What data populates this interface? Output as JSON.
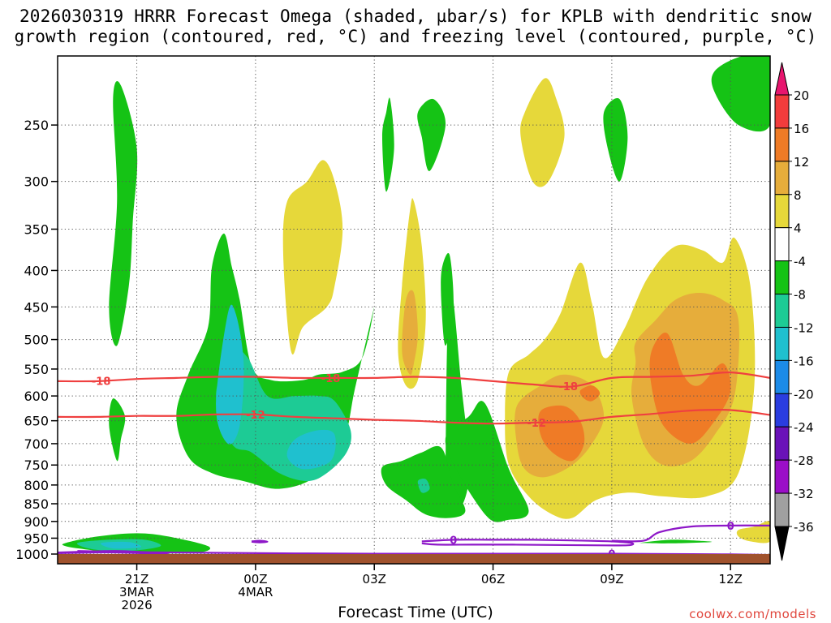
{
  "chart_data": {
    "type": "contour",
    "title_line1": "2026030319 HRRR Forecast Omega (shaded, µbar/s) for KPLB with dendritic snow",
    "title_line2": "growth region (contoured, red, °C) and freezing level (contoured, purple, °C)",
    "xlabel": "Forecast Time (UTC)",
    "ylabel": "",
    "x_ticks": [
      {
        "t": 21,
        "lines": [
          "21Z",
          "3MAR",
          "2026"
        ]
      },
      {
        "t": 24,
        "lines": [
          "00Z",
          "4MAR"
        ]
      },
      {
        "t": 27,
        "lines": [
          "03Z"
        ]
      },
      {
        "t": 30,
        "lines": [
          "06Z"
        ]
      },
      {
        "t": 33,
        "lines": [
          "09Z"
        ]
      },
      {
        "t": 36,
        "lines": [
          "12Z"
        ]
      }
    ],
    "xlim": [
      19,
      37
    ],
    "ylim_hpa": [
      1000,
      200
    ],
    "y_ticks": [
      250,
      300,
      350,
      400,
      450,
      500,
      550,
      600,
      650,
      700,
      750,
      800,
      850,
      900,
      950,
      1000
    ],
    "colorbar": {
      "labels": [
        "20",
        "16",
        "12",
        "8",
        "4",
        "-4",
        "-8",
        "-12",
        "-16",
        "-20",
        "-24",
        "-28",
        "-32",
        "-36"
      ],
      "colors": [
        "#e8156e",
        "#f23c3c",
        "#ef7b26",
        "#e6ad3b",
        "#e6d83a",
        "#ffffff",
        "#15c315",
        "#1dcb95",
        "#1fc0cf",
        "#1c8be8",
        "#2a3de0",
        "#6a12b8",
        "#9b0ec7",
        "#a0a0a0",
        "#000000"
      ]
    },
    "omega_regions": [
      {
        "level": "-4",
        "color": "#15c315",
        "t": [
          20.4,
          20.6,
          21.0,
          20.9,
          20.8,
          20.5,
          20.3,
          20.5
        ],
        "p": [
          230,
          220,
          270,
          340,
          420,
          510,
          450,
          320
        ]
      },
      {
        "level": "-4",
        "color": "#15c315",
        "t": [
          20.4,
          20.7,
          20.6,
          20.5,
          20.3
        ],
        "p": [
          605,
          640,
          690,
          740,
          660
        ]
      },
      {
        "level": "-4",
        "color": "#15c315",
        "t": [
          22.9,
          23.2,
          23.4,
          23.6,
          23.9,
          24.4,
          25.2,
          25.6,
          26.2,
          26.7,
          27.0,
          26.8,
          26.5,
          26.2,
          25.5,
          24.6,
          23.7,
          22.9,
          22.3,
          22.0,
          22.3,
          22.8
        ],
        "p": [
          395,
          355,
          395,
          440,
          545,
          570,
          570,
          560,
          555,
          530,
          450,
          500,
          590,
          700,
          780,
          810,
          790,
          770,
          730,
          640,
          560,
          480
        ]
      },
      {
        "level": "-4",
        "color": "#15c315",
        "t": [
          27.3,
          27.4,
          27.5,
          27.3,
          27.2
        ],
        "p": [
          240,
          230,
          270,
          310,
          260
        ]
      },
      {
        "level": "-4",
        "color": "#15c315",
        "t": [
          28.1,
          28.5,
          28.8,
          28.4,
          28.2
        ],
        "p": [
          240,
          230,
          250,
          290,
          260
        ]
      },
      {
        "level": "-4",
        "color": "#15c315",
        "t": [
          28.9,
          29.2,
          29.4,
          29.2,
          28.9,
          28.8
        ],
        "p": [
          420,
          580,
          760,
          860,
          870,
          800
        ]
      },
      {
        "level": "-4",
        "color": "#15c315",
        "t": [
          27.2,
          27.7,
          28.2,
          28.7,
          29.0,
          29.3,
          28.9,
          28.3,
          27.8,
          27.3
        ],
        "p": [
          755,
          740,
          720,
          710,
          800,
          870,
          890,
          880,
          840,
          800
        ]
      },
      {
        "level": "-4",
        "color": "#15c315",
        "t": [
          28.8,
          29.4,
          29.8,
          30.4,
          30.9,
          30.4,
          29.8
        ],
        "p": [
          700,
          640,
          615,
          760,
          870,
          895,
          880
        ]
      },
      {
        "level": "-4",
        "color": "#15c315",
        "t": [
          28.7,
          28.9,
          29.0,
          28.8,
          28.7
        ],
        "p": [
          400,
          380,
          450,
          510,
          450
        ]
      },
      {
        "level": "-4",
        "color": "#15c315",
        "t": [
          32.8,
          33.2,
          33.4,
          33.2,
          32.9
        ],
        "p": [
          240,
          230,
          260,
          300,
          270
        ]
      },
      {
        "level": "-4",
        "color": "#15c315",
        "t": [
          35.6,
          36.3,
          37.0,
          37.0,
          36.2,
          35.6
        ],
        "p": [
          210,
          200,
          200,
          250,
          250,
          225
        ]
      },
      {
        "level": "-4",
        "color": "#15c315",
        "t": [
          19.2,
          20.0,
          21.0,
          21.8,
          22.8,
          22.6,
          21.6,
          20.5,
          19.7,
          19.2
        ],
        "p": [
          965,
          945,
          935,
          945,
          975,
          995,
          998,
          995,
          985,
          975
        ]
      },
      {
        "level": "-4",
        "color": "#15c315",
        "t": [
          33.8,
          34.5,
          35.2,
          35.5,
          34.5,
          33.8
        ],
        "p": [
          963,
          955,
          958,
          962,
          966,
          965
        ]
      },
      {
        "level": "-8",
        "color": "#1dcb95",
        "t": [
          23.4,
          23.8,
          24.3,
          25.0,
          25.6,
          26.0,
          26.4,
          26.3,
          25.8,
          25.3,
          24.6,
          23.9,
          23.4,
          23.0
        ],
        "p": [
          520,
          530,
          600,
          600,
          600,
          610,
          670,
          720,
          770,
          790,
          770,
          720,
          700,
          600
        ]
      },
      {
        "level": "-8",
        "color": "#1dcb95",
        "t": [
          19.5,
          20.3,
          21.2,
          21.6,
          20.8,
          19.9
        ],
        "p": [
          965,
          955,
          955,
          975,
          990,
          985
        ]
      },
      {
        "level": "-8",
        "color": "#1dcb95",
        "t": [
          28.1,
          28.3,
          28.4,
          28.2
        ],
        "p": [
          790,
          785,
          810,
          820
        ]
      },
      {
        "level": "-12",
        "color": "#1fc0cf",
        "t": [
          23.3,
          23.5,
          23.7,
          23.6,
          23.3,
          23.0
        ],
        "p": [
          460,
          460,
          540,
          660,
          700,
          620
        ]
      },
      {
        "level": "-12",
        "color": "#1fc0cf",
        "t": [
          25.0,
          25.6,
          26.0,
          25.9,
          25.2,
          24.8
        ],
        "p": [
          690,
          670,
          680,
          740,
          760,
          730
        ]
      },
      {
        "level": "-12",
        "color": "#1fc0cf",
        "t": [
          20.1,
          20.8,
          21.1,
          20.4
        ],
        "p": [
          965,
          962,
          978,
          982
        ]
      },
      {
        "level": "4",
        "color": "#e6d83a",
        "t": [
          25.3,
          25.7,
          26.0,
          26.2,
          26.0,
          25.8,
          25.2,
          24.9,
          24.7,
          24.8
        ],
        "p": [
          300,
          280,
          300,
          350,
          420,
          450,
          480,
          520,
          380,
          320
        ]
      },
      {
        "level": "4",
        "color": "#e6d83a",
        "t": [
          27.9,
          28.0,
          28.2,
          28.3,
          28.1,
          27.8,
          27.6,
          27.7
        ],
        "p": [
          330,
          320,
          370,
          470,
          570,
          580,
          520,
          420
        ]
      },
      {
        "level": "4",
        "color": "#e6d83a",
        "t": [
          30.8,
          31.3,
          31.6,
          31.8,
          31.4,
          31.0,
          30.7
        ],
        "p": [
          240,
          215,
          230,
          260,
          300,
          300,
          260
        ]
      },
      {
        "level": "4",
        "color": "#e6d83a",
        "t": [
          30.4,
          30.9,
          31.3,
          31.7,
          32.2,
          32.5,
          32.8,
          33.3,
          33.9,
          34.6,
          35.3,
          35.8,
          36.1,
          36.5,
          36.6,
          36.2,
          35.4,
          34.3,
          33.4,
          32.6,
          32.0,
          31.5,
          30.9,
          30.4,
          30.3
        ],
        "p": [
          555,
          525,
          500,
          460,
          390,
          445,
          530,
          485,
          410,
          370,
          375,
          390,
          360,
          420,
          580,
          770,
          830,
          830,
          820,
          840,
          890,
          880,
          830,
          750,
          650
        ]
      },
      {
        "level": "4",
        "color": "#e6d83a",
        "t": [
          36.2,
          36.6,
          37.0,
          37.0,
          36.5,
          36.2
        ],
        "p": [
          925,
          915,
          900,
          960,
          960,
          945
        ]
      },
      {
        "level": "8",
        "color": "#e6ad3b",
        "t": [
          27.8,
          28.0,
          28.1,
          28.0,
          27.9,
          27.7
        ],
        "p": [
          440,
          430,
          490,
          540,
          560,
          520
        ]
      },
      {
        "level": "8",
        "color": "#e6ad3b",
        "t": [
          30.6,
          31.2,
          31.8,
          32.5,
          32.8,
          32.5,
          32.0,
          31.3,
          30.8,
          30.6
        ],
        "p": [
          620,
          580,
          560,
          580,
          640,
          700,
          750,
          780,
          760,
          700
        ]
      },
      {
        "level": "8",
        "color": "#e6ad3b",
        "t": [
          33.6,
          34.1,
          34.6,
          35.2,
          35.8,
          36.2,
          36.1,
          35.6,
          35.0,
          34.3,
          33.8,
          33.5,
          33.6
        ],
        "p": [
          505,
          470,
          440,
          430,
          440,
          470,
          600,
          680,
          740,
          750,
          700,
          600,
          540
        ]
      },
      {
        "level": "12",
        "color": "#ef7b26",
        "t": [
          31.2,
          31.8,
          32.2,
          32.3,
          32.0,
          31.5,
          31.2
        ],
        "p": [
          630,
          620,
          650,
          700,
          740,
          720,
          680
        ]
      },
      {
        "level": "12",
        "color": "#ef7b26",
        "t": [
          34.0,
          34.4,
          34.8,
          35.2,
          35.8,
          36.0,
          35.6,
          35.0,
          34.3,
          34.0
        ],
        "p": [
          520,
          490,
          560,
          580,
          540,
          590,
          650,
          700,
          660,
          580
        ]
      },
      {
        "level": "12",
        "color": "#ef7b26",
        "t": [
          32.2,
          32.5,
          32.7,
          32.5,
          32.3
        ],
        "p": [
          590,
          580,
          595,
          610,
          605
        ]
      }
    ],
    "dgz_contours": [
      {
        "label": "-18",
        "color": "#ef4040",
        "t": [
          19,
          20,
          21,
          22,
          23,
          24,
          25,
          26,
          27,
          28,
          29,
          30,
          31,
          32,
          33,
          34,
          35,
          36,
          37
        ],
        "p": [
          572,
          572,
          568,
          566,
          564,
          564,
          566,
          566,
          566,
          564,
          566,
          572,
          578,
          582,
          566,
          564,
          562,
          556,
          566
        ],
        "label_at": [
          20.1,
          25.9,
          31.9
        ]
      },
      {
        "label": "-12",
        "color": "#ef4040",
        "t": [
          19,
          20,
          21,
          22,
          23,
          24,
          25,
          26,
          27,
          28,
          29,
          30,
          31,
          32,
          33,
          34,
          35,
          36,
          37
        ],
        "p": [
          642,
          642,
          640,
          640,
          637,
          637,
          642,
          645,
          648,
          650,
          654,
          656,
          654,
          652,
          642,
          636,
          629,
          628,
          638
        ],
        "label_at": [
          24.0,
          31.1
        ]
      }
    ],
    "freezing_level": [
      {
        "label": "0",
        "color": "#8e18c8",
        "t": [
          19,
          19.8,
          20.5,
          21.2,
          21.6,
          21.8,
          21.5,
          20.5,
          19.5,
          19
        ],
        "p": [
          995,
          992,
          990,
          994,
          997,
          1002,
          999,
          995,
          996,
          997
        ],
        "label_at": []
      },
      {
        "label": "0",
        "color": "#8e18c8",
        "t": [
          23.9,
          24.1,
          24.3,
          24.1,
          23.9
        ],
        "p": [
          960,
          958,
          961,
          963,
          961
        ],
        "label_at": []
      },
      {
        "label": "0",
        "color": "#8e18c8",
        "t": [
          28.2,
          29,
          30,
          31,
          32,
          33,
          33.5,
          33.4,
          32.5,
          31.5,
          30.5,
          29.5,
          28.6,
          28.2
        ],
        "p": [
          960,
          955,
          955,
          955,
          957,
          960,
          965,
          972,
          972,
          971,
          970,
          970,
          970,
          966
        ],
        "label_at": [
          29.0
        ]
      },
      {
        "label": "0",
        "color": "#8e18c8",
        "t": [
          19.5,
          21,
          23,
          25,
          27,
          29,
          31,
          33,
          34.5,
          36,
          37
        ],
        "p": [
          990,
          994,
          996,
          998,
          999,
          999,
          999,
          999,
          1000,
          1001,
          1003
        ],
        "label_at": [
          33.0
        ]
      },
      {
        "label": "0",
        "color": "#8e18c8",
        "t": [
          33.0,
          33.8,
          34.2,
          35,
          36,
          37
        ],
        "p": [
          958,
          958,
          932,
          915,
          912,
          912
        ],
        "label_at": [
          36.0
        ]
      }
    ]
  },
  "credit": "coolwx.com/models"
}
